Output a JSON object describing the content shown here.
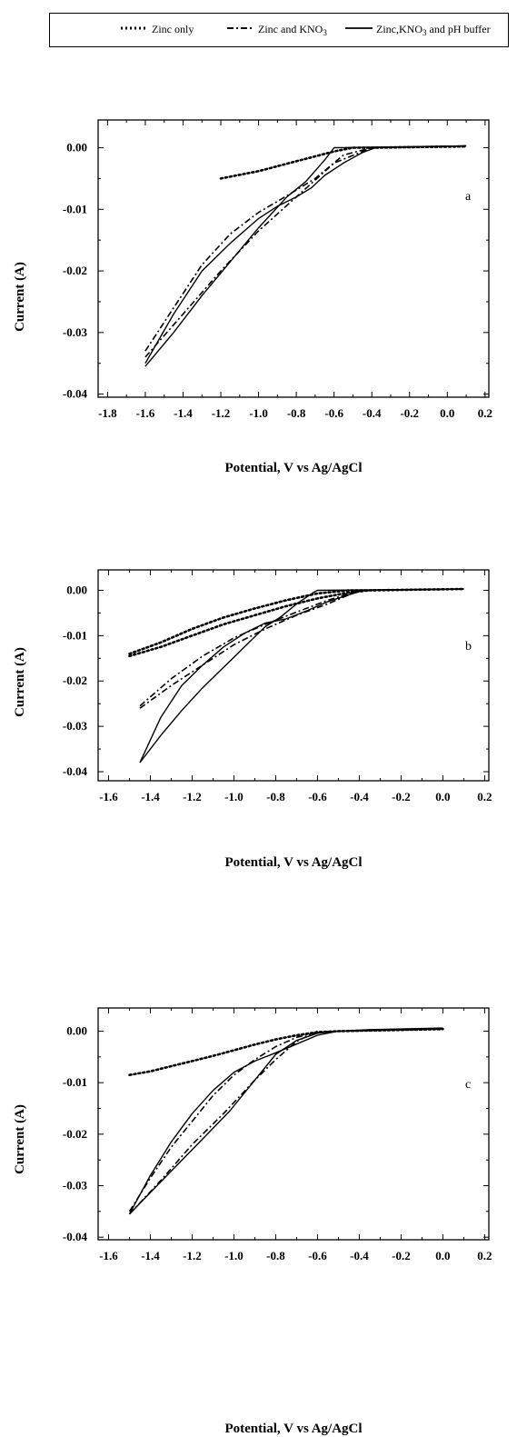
{
  "legend": {
    "items": [
      {
        "label": "Zinc only",
        "style": "dotted"
      },
      {
        "label": "Zinc and KNO",
        "sub": "3",
        "style": "dashdot"
      },
      {
        "label": "Zinc,KNO",
        "sub": "3",
        "label_end": " and pH buffer",
        "style": "solid"
      }
    ]
  },
  "chart_data": [
    {
      "type": "line",
      "panel_label": "a",
      "xlabel": "Potential, V vs Ag/AgCl",
      "ylabel": "Current (A)",
      "xlim": [
        -1.85,
        0.22
      ],
      "ylim": [
        -0.0405,
        0.0045
      ],
      "xticks": [
        -1.8,
        -1.6,
        -1.4,
        -1.2,
        -1.0,
        -0.8,
        -0.6,
        -0.4,
        -0.2,
        0.0,
        0.2
      ],
      "xtick_labels": [
        "-1.8",
        "-1.6",
        "-1.4",
        "-1.2",
        "-1.0",
        "-0.8",
        "-0.6",
        "-0.4",
        "-0.2",
        "0.0",
        "0.2"
      ],
      "yticks": [
        0.0,
        -0.01,
        -0.02,
        -0.03,
        -0.04
      ],
      "ytick_labels": [
        "0.00",
        "-0.01",
        "-0.02",
        "-0.03",
        "-0.04"
      ],
      "series": [
        {
          "name": "Zinc only",
          "style": "dotted",
          "x": [
            -1.2,
            -1.0,
            -0.8,
            -0.6,
            -0.5,
            -0.4,
            0.1
          ],
          "y": [
            -0.005,
            -0.0038,
            -0.0022,
            -0.0006,
            0.0,
            0.0,
            0.0002
          ]
        },
        {
          "name": "Zinc and KNO3",
          "style": "dashdot",
          "x": [
            -1.6,
            -1.45,
            -1.3,
            -1.15,
            -1.0,
            -0.85,
            -0.7,
            -0.55,
            -0.4,
            0.1
          ],
          "y": [
            -0.033,
            -0.026,
            -0.019,
            -0.014,
            -0.0105,
            -0.0078,
            -0.005,
            -0.0012,
            0.0,
            0.0003
          ]
        },
        {
          "name": "Zinc and KNO3 return",
          "style": "dashdot",
          "x": [
            -1.6,
            -1.4,
            -1.2,
            -1.0,
            -0.8,
            -0.6,
            -0.4
          ],
          "y": [
            -0.034,
            -0.027,
            -0.02,
            -0.0135,
            -0.008,
            -0.0025,
            0.0
          ]
        },
        {
          "name": "Zinc,KNO3 and pH buffer",
          "style": "solid",
          "x": [
            -1.6,
            -1.45,
            -1.3,
            -1.15,
            -1.0,
            -0.9,
            -0.8,
            -0.72,
            -0.65,
            -0.55,
            -0.45,
            -0.38,
            0.1
          ],
          "y": [
            -0.035,
            -0.027,
            -0.02,
            -0.0155,
            -0.0115,
            -0.0095,
            -0.008,
            -0.0065,
            -0.0045,
            -0.0025,
            -0.0008,
            0.0,
            0.0003
          ]
        },
        {
          "name": "Zinc,KNO3 and pH buffer return",
          "style": "solid",
          "x": [
            -1.6,
            -1.45,
            -1.3,
            -1.15,
            -1.0,
            -0.85,
            -0.75,
            -0.65,
            -0.6,
            0.1
          ],
          "y": [
            -0.0355,
            -0.03,
            -0.024,
            -0.0185,
            -0.013,
            -0.008,
            -0.0055,
            -0.002,
            0.0,
            0.0003
          ]
        }
      ]
    },
    {
      "type": "line",
      "panel_label": "b",
      "xlabel": "Potential, V vs Ag/AgCl",
      "ylabel": "Current (A)",
      "xlim": [
        -1.65,
        0.22
      ],
      "ylim": [
        -0.042,
        0.0045
      ],
      "xticks": [
        -1.6,
        -1.4,
        -1.2,
        -1.0,
        -0.8,
        -0.6,
        -0.4,
        -0.2,
        0.0,
        0.2
      ],
      "xtick_labels": [
        "-1.6",
        "-1.4",
        "-1.2",
        "-1.0",
        "-0.8",
        "-0.6",
        "-0.4",
        "-0.2",
        "0.0",
        "0.2"
      ],
      "yticks": [
        0.0,
        -0.01,
        -0.02,
        -0.03,
        -0.04
      ],
      "ytick_labels": [
        "0.00",
        "-0.01",
        "-0.02",
        "-0.03",
        "-0.04"
      ],
      "series": [
        {
          "name": "Zinc only",
          "style": "dotted",
          "x": [
            -1.5,
            -1.35,
            -1.2,
            -1.05,
            -0.9,
            -0.75,
            -0.6,
            -0.45,
            -0.35,
            0.1
          ],
          "y": [
            -0.014,
            -0.0115,
            -0.0085,
            -0.006,
            -0.004,
            -0.0022,
            -0.0007,
            0.0,
            0.0,
            0.0003
          ]
        },
        {
          "name": "Zinc only return",
          "style": "dotted",
          "x": [
            -1.5,
            -1.35,
            -1.2,
            -1.05,
            -0.9,
            -0.75,
            -0.6,
            -0.45,
            -0.35
          ],
          "y": [
            -0.0145,
            -0.0125,
            -0.01,
            -0.0075,
            -0.0055,
            -0.0035,
            -0.0018,
            -0.0005,
            0.0
          ]
        },
        {
          "name": "Zinc and KNO3",
          "style": "dashdot",
          "x": [
            -1.45,
            -1.3,
            -1.15,
            -1.0,
            -0.85,
            -0.7,
            -0.55,
            -0.4,
            0.1
          ],
          "y": [
            -0.0255,
            -0.0195,
            -0.0145,
            -0.0105,
            -0.0075,
            -0.0048,
            -0.0022,
            0.0,
            0.0003
          ]
        },
        {
          "name": "Zinc and KNO3 return",
          "style": "dashdot",
          "x": [
            -1.45,
            -1.3,
            -1.15,
            -1.0,
            -0.85,
            -0.7,
            -0.55,
            -0.4
          ],
          "y": [
            -0.026,
            -0.021,
            -0.0165,
            -0.012,
            -0.0085,
            -0.0055,
            -0.003,
            0.0
          ]
        },
        {
          "name": "Zinc,KNO3 and pH buffer",
          "style": "solid",
          "x": [
            -1.45,
            -1.35,
            -1.25,
            -1.15,
            -1.05,
            -0.95,
            -0.85,
            -0.75,
            -0.65,
            -0.55,
            -0.45,
            -0.38,
            0.1
          ],
          "y": [
            -0.038,
            -0.028,
            -0.021,
            -0.0165,
            -0.0125,
            -0.0095,
            -0.0072,
            -0.0063,
            -0.0045,
            -0.0025,
            -0.001,
            0.0,
            0.0003
          ]
        },
        {
          "name": "Zinc,KNO3 and pH buffer return",
          "style": "solid",
          "x": [
            -1.45,
            -1.35,
            -1.25,
            -1.15,
            -1.05,
            -0.95,
            -0.85,
            -0.78,
            -0.7,
            -0.62,
            -0.6,
            0.1
          ],
          "y": [
            -0.038,
            -0.032,
            -0.0265,
            -0.0215,
            -0.017,
            -0.0125,
            -0.008,
            -0.006,
            -0.003,
            -0.0005,
            0.0,
            0.0003
          ]
        }
      ]
    },
    {
      "type": "line",
      "panel_label": "c",
      "xlabel": "Potential, V vs Ag/AgCl",
      "ylabel": "Current (A)",
      "xlim": [
        -1.65,
        0.22
      ],
      "ylim": [
        -0.0405,
        0.0045
      ],
      "xticks": [
        -1.6,
        -1.4,
        -1.2,
        -1.0,
        -0.8,
        -0.6,
        -0.4,
        -0.2,
        0.0,
        0.2
      ],
      "xtick_labels": [
        "-1.6",
        "-1.4",
        "-1.2",
        "-1.0",
        "-0.8",
        "-0.6",
        "-0.4",
        "-0.2",
        "0.0",
        "0.2"
      ],
      "yticks": [
        0.0,
        -0.01,
        -0.02,
        -0.03,
        -0.04
      ],
      "ytick_labels": [
        "0.00",
        "-0.01",
        "-0.02",
        "-0.03",
        "-0.04"
      ],
      "series": [
        {
          "name": "Zinc only",
          "style": "dotted",
          "x": [
            -1.5,
            -1.4,
            -1.3,
            -1.2,
            -1.1,
            -1.0,
            -0.9,
            -0.8,
            -0.7,
            -0.6,
            -0.5,
            0.0
          ],
          "y": [
            -0.0085,
            -0.0078,
            -0.0068,
            -0.0058,
            -0.0048,
            -0.0037,
            -0.0026,
            -0.0016,
            -0.0008,
            -0.0002,
            0.0,
            0.0004
          ]
        },
        {
          "name": "Zinc and KNO3",
          "style": "dashdot",
          "x": [
            -1.5,
            -1.4,
            -1.3,
            -1.2,
            -1.1,
            -1.0,
            -0.9,
            -0.8,
            -0.7,
            -0.6,
            -0.5,
            0.0
          ],
          "y": [
            -0.035,
            -0.0285,
            -0.0225,
            -0.0175,
            -0.0125,
            -0.0085,
            -0.0055,
            -0.003,
            -0.0012,
            -0.0002,
            0.0,
            0.0004
          ]
        },
        {
          "name": "Zinc and KNO3 return",
          "style": "dashdot",
          "x": [
            -1.5,
            -1.35,
            -1.2,
            -1.05,
            -0.9,
            -0.8,
            -0.7,
            -0.6
          ],
          "y": [
            -0.0355,
            -0.029,
            -0.022,
            -0.016,
            -0.0095,
            -0.0055,
            -0.002,
            0.0
          ]
        },
        {
          "name": "Zinc,KNO3 and pH buffer",
          "style": "solid",
          "x": [
            -1.5,
            -1.4,
            -1.3,
            -1.2,
            -1.1,
            -1.0,
            -0.9,
            -0.8,
            -0.7,
            -0.6,
            -0.5,
            -0.35,
            0.0
          ],
          "y": [
            -0.0355,
            -0.028,
            -0.0215,
            -0.016,
            -0.0115,
            -0.008,
            -0.0058,
            -0.0042,
            -0.0025,
            -0.0008,
            0.0,
            0.0003,
            0.0006
          ]
        },
        {
          "name": "Zinc,KNO3 and pH buffer return",
          "style": "solid",
          "x": [
            -1.5,
            -1.38,
            -1.26,
            -1.14,
            -1.02,
            -0.9,
            -0.8,
            -0.7,
            -0.6,
            -0.5,
            0.0
          ],
          "y": [
            -0.0355,
            -0.0305,
            -0.0255,
            -0.0205,
            -0.0155,
            -0.0095,
            -0.0045,
            -0.0018,
            -0.0004,
            0.0,
            0.0005
          ]
        }
      ]
    }
  ]
}
